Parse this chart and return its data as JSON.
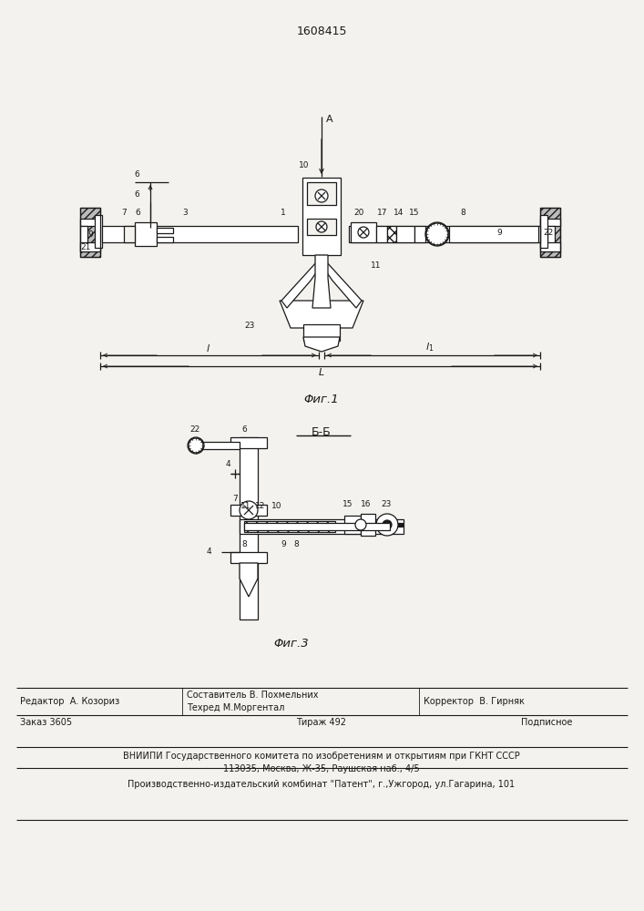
{
  "patent_number": "1608415",
  "fig1_caption": "Φиг.1",
  "fig3_caption": "Φиг.3",
  "fig_bb_caption": "Б-Б",
  "editor_label": "Редактор  А. Козориз",
  "composer_label": "Составитель В. Похмельних",
  "techred_label": "Техред М.Моргентал",
  "corrector_label": "Корректор  В. Гирняк",
  "order_label": "Заказ 3605",
  "tirazh_label": "Тираж 492",
  "podpisnoe_label": "Подписное",
  "vnipi_line1": "ВНИИПИ Государственного комитета по изобретениям и открытиям при ГКНТ СССР",
  "vnipi_line2": "113035, Москва, Ж-35, Раушская наб., 4/5",
  "patent_line": "Производственно-издательский комбинат \"Патент\", г.,Ужгород, ул.Гагарина, 101",
  "bg_color": "#f4f2ee",
  "line_color": "#1a1a1a",
  "text_color": "#1a1a1a",
  "white": "#ffffff"
}
